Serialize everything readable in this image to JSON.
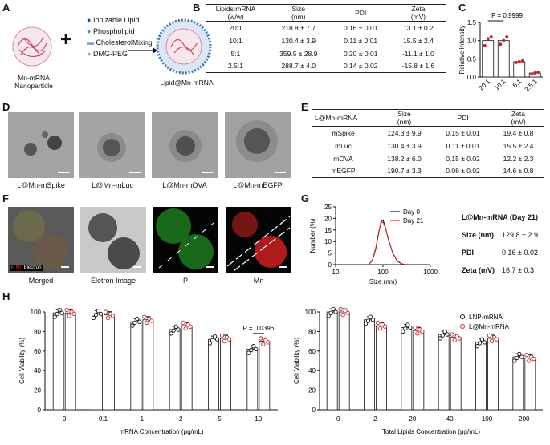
{
  "panels": {
    "a": "A",
    "b": "B",
    "c": "C",
    "d": "D",
    "e": "E",
    "f": "F",
    "g": "G",
    "h": "H"
  },
  "panel_a": {
    "left_label_1": "Mn-mRNA",
    "left_label_2": "Nanoparticle",
    "plus": "+",
    "legend": [
      "Ionizable Lipid",
      "Phospholipid",
      "Cholesterol",
      "DMG-PEG"
    ],
    "arrow_label": "Mixing",
    "product_label": "Lipid@Mn-mRNA"
  },
  "table_b": {
    "headers": [
      "Lipids:mRNA (w/w)",
      "Size (nm)",
      "PDI",
      "Zeta (mV)"
    ],
    "header_line1": [
      "Lipids:mRNA",
      "Size",
      "PDI",
      "Zeta"
    ],
    "header_line2": [
      "(w/w)",
      "(nm)",
      "",
      "(mV)"
    ],
    "rows": [
      [
        "20:1",
        "218.8 ± 7.7",
        "0.16 ± 0.01",
        "13.1 ± 0.2"
      ],
      [
        "10:1",
        "130.4 ± 3.9",
        "0.11 ± 0.01",
        "15.5 ± 2.4"
      ],
      [
        "5:1",
        "359.5 ± 28.9",
        "0.20 ± 0.01",
        "-11.1 ± 1.0"
      ],
      [
        "2.5:1",
        "288.7 ± 4.0",
        "0.14 ± 0.02",
        "-15.8 ± 1.6"
      ]
    ]
  },
  "table_e": {
    "header_line1": [
      "L@Mn-mRNA",
      "Size",
      "PDI",
      "Zeta"
    ],
    "header_line2": [
      "",
      "(nm)",
      "",
      "(mV)"
    ],
    "rows": [
      [
        "mSpike",
        "124.3 ± 9.9",
        "0.15 ± 0.01",
        "19.4 ± 0.8"
      ],
      [
        "mLuc",
        "130.4 ± 3.9",
        "0.11 ± 0.01",
        "15.5 ± 2.4"
      ],
      [
        "mOVA",
        "138.2 ± 6.0",
        "0.15 ± 0.02",
        "12.2 ± 2.3"
      ],
      [
        "mEGFP",
        "190.7 ± 3.3",
        "0.08 ± 0.02",
        "14.6 ± 0.8"
      ]
    ]
  },
  "panel_d": {
    "captions": [
      "L@Mn-mSpike",
      "L@Mn-mLuc",
      "L@Mn-mOVA",
      "L@Mn-mEGFP"
    ]
  },
  "panel_f": {
    "captions": [
      "Merged",
      "Eletron Image",
      "P",
      "Mn"
    ],
    "legend_p": "P",
    "legend_mn": "Mn",
    "legend_electron": "Electron"
  },
  "panel_g_info": {
    "title": "L@Mn-mRNA (Day 21)",
    "size_label": "Size (nm)",
    "size_value": "129.8 ± 2.9",
    "pdi_label": "PDI",
    "pdi_value": "0.16 ± 0.02",
    "zeta_label": "Zeta (mV)",
    "zeta_value": "16.7 ± 0.3"
  },
  "colors": {
    "red": "#c0282d",
    "black": "#111111",
    "bar_red": "#c0282d"
  },
  "chart_data": [
    {
      "id": "C",
      "type": "bar",
      "title": "",
      "ylabel": "Relative Intensity",
      "categories": [
        "20:1",
        "10:1",
        "5:1",
        "2.5:1"
      ],
      "values": [
        1.0,
        1.0,
        0.42,
        0.11
      ],
      "ylim": [
        0,
        1.5
      ],
      "yticks": [
        "0.0",
        "0.5",
        "1.0",
        "1.5"
      ],
      "annotation": "P = 0.9999"
    },
    {
      "id": "G",
      "type": "line",
      "xlabel": "Size (nm)",
      "ylabel": "Number (%)",
      "xscale": "log",
      "xlim": [
        10,
        1000
      ],
      "ylim": [
        0,
        25
      ],
      "xticks": [
        "10",
        "100",
        "1000"
      ],
      "yticks": [
        "0",
        "5",
        "10",
        "15",
        "20",
        "25"
      ],
      "series": [
        {
          "name": "Day 0",
          "color": "#111111",
          "x": [
            50,
            60,
            70,
            80,
            90,
            100,
            110,
            130,
            160,
            200,
            250,
            300
          ],
          "y": [
            0,
            2,
            6.5,
            13,
            18.2,
            19.4,
            17,
            11,
            5,
            1.5,
            0.3,
            0
          ]
        },
        {
          "name": "Day 21",
          "color": "#c0282d",
          "x": [
            50,
            60,
            70,
            80,
            90,
            100,
            110,
            130,
            160,
            200,
            250,
            300
          ],
          "y": [
            0,
            2.2,
            7,
            13.5,
            18,
            18.4,
            16.5,
            11.2,
            5.2,
            1.7,
            0.4,
            0
          ]
        }
      ]
    },
    {
      "id": "H-left",
      "type": "bar",
      "xlabel": "mRNA Concentration (μg/mL)",
      "ylabel": "Cell Viability (%)",
      "categories": [
        "0",
        "0.1",
        "1",
        "2",
        "5",
        "10"
      ],
      "ylim": [
        0,
        100
      ],
      "yticks": [
        "0",
        "20",
        "40",
        "60",
        "80",
        "100"
      ],
      "series": [
        {
          "name": "LNP-mRNA",
          "values": [
            99,
            98,
            90,
            82,
            72,
            62
          ]
        },
        {
          "name": "L@Mn-mRNA",
          "values": [
            99,
            97,
            92,
            86,
            73,
            70
          ]
        }
      ],
      "annotation": "P = 0.0396"
    },
    {
      "id": "H-right",
      "type": "bar",
      "xlabel": "Total Lipids Concentration (μg/mL)",
      "ylabel": "Cell Viability (%)",
      "categories": [
        "0",
        "2",
        "20",
        "40",
        "100",
        "200"
      ],
      "ylim": [
        0,
        100
      ],
      "yticks": [
        "0",
        "20",
        "40",
        "60",
        "80",
        "100"
      ],
      "series": [
        {
          "name": "LNP-mRNA",
          "values": [
            100,
            92,
            84,
            77,
            69,
            54
          ]
        },
        {
          "name": "L@Mn-mRNA",
          "values": [
            100,
            86,
            81,
            74,
            73,
            53
          ]
        }
      ]
    }
  ]
}
